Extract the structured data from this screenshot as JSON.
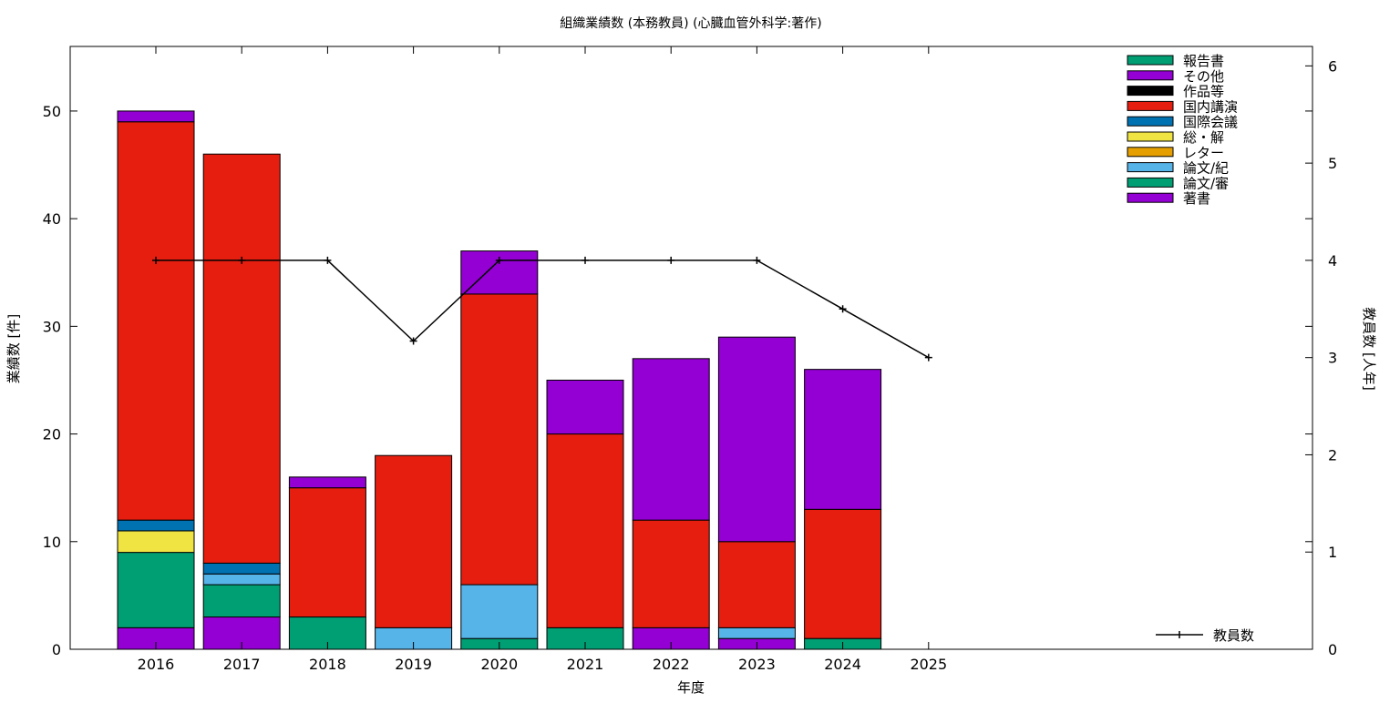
{
  "chart_data": {
    "type": "bar",
    "title": "組織業績数 (本務教員) (心臓血管外科学:著作)",
    "xlabel": "年度",
    "ylabel": "業績数 [件]",
    "y2label": "教員数 [人年]",
    "categories": [
      "2016",
      "2017",
      "2018",
      "2019",
      "2020",
      "2021",
      "2022",
      "2023",
      "2024",
      "2025"
    ],
    "ylim": [
      0,
      56
    ],
    "yticks": [
      0,
      10,
      20,
      30,
      40,
      50
    ],
    "y2lim": [
      0,
      6.2
    ],
    "y2ticks": [
      0,
      1,
      2,
      3,
      4,
      5,
      6
    ],
    "stacked": true,
    "legend_position": "top-right",
    "grid": false,
    "series": [
      {
        "name": "著書",
        "color": "#9400d3",
        "values": [
          2,
          3,
          0,
          0,
          0,
          0,
          2,
          1,
          0,
          0
        ]
      },
      {
        "name": "論文/審",
        "color": "#009e73",
        "values": [
          7,
          3,
          3,
          0,
          1,
          2,
          0,
          0,
          1,
          0
        ]
      },
      {
        "name": "論文/紀",
        "color": "#56b4e9",
        "values": [
          0,
          1,
          0,
          2,
          5,
          0,
          0,
          1,
          0,
          0
        ]
      },
      {
        "name": "レター",
        "color": "#e69f00",
        "values": [
          0,
          0,
          0,
          0,
          0,
          0,
          0,
          0,
          0,
          0
        ]
      },
      {
        "name": "総・解",
        "color": "#f0e442",
        "values": [
          2,
          0,
          0,
          0,
          0,
          0,
          0,
          0,
          0,
          0
        ]
      },
      {
        "name": "国際会議",
        "color": "#0072b2",
        "values": [
          1,
          1,
          0,
          0,
          0,
          0,
          0,
          0,
          0,
          0
        ]
      },
      {
        "name": "国内講演",
        "color": "#e51e10",
        "values": [
          37,
          38,
          12,
          16,
          27,
          18,
          10,
          8,
          12,
          0
        ]
      },
      {
        "name": "作品等",
        "color": "#000000",
        "values": [
          0,
          0,
          0,
          0,
          0,
          0,
          0,
          0,
          0,
          0
        ]
      },
      {
        "name": "その他",
        "color": "#9400d3",
        "values": [
          1,
          0,
          1,
          0,
          4,
          5,
          15,
          19,
          13,
          0
        ]
      },
      {
        "name": "報告書",
        "color": "#009e73",
        "values": [
          0,
          0,
          0,
          0,
          0,
          0,
          0,
          0,
          0,
          0
        ]
      }
    ],
    "legend_order": [
      "報告書",
      "その他",
      "作品等",
      "国内講演",
      "国際会議",
      "総・解",
      "レター",
      "論文/紀",
      "論文/審",
      "著書"
    ],
    "line_series": {
      "name": "教員数",
      "axis": "y2",
      "color": "#000000",
      "values": [
        4,
        4,
        4,
        3.17,
        4,
        4,
        4,
        4,
        3.5,
        3
      ]
    }
  }
}
